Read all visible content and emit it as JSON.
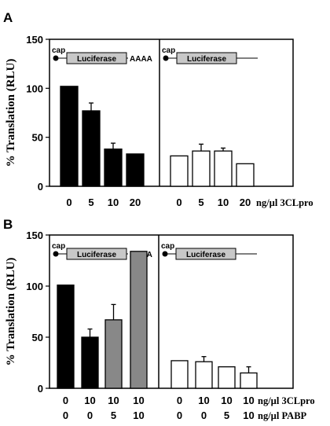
{
  "chart_data": [
    {
      "panel_label": "A",
      "type": "bar",
      "ylabel": "% Translation (RLU)",
      "ylim": [
        0,
        150
      ],
      "yticks": [
        "0",
        "50",
        "100",
        "150"
      ],
      "x_row_suffix": "ng/µl 3CLpro",
      "subpanels": [
        {
          "construct": {
            "cap": "cap",
            "gene": "Luciferase",
            "tail": "AAAA"
          },
          "categories": [
            "0",
            "5",
            "10",
            "20"
          ],
          "values": [
            102,
            77,
            38,
            33
          ],
          "errors": [
            null,
            8,
            6,
            null
          ],
          "fills": [
            "#000000",
            "#000000",
            "#000000",
            "#000000"
          ]
        },
        {
          "construct": {
            "cap": "cap",
            "gene": "Luciferase",
            "tail": ""
          },
          "categories": [
            "0",
            "5",
            "10",
            "20"
          ],
          "values": [
            31,
            36,
            36,
            23
          ],
          "errors": [
            null,
            7,
            3,
            null
          ],
          "fills": [
            "#ffffff",
            "#ffffff",
            "#ffffff",
            "#ffffff"
          ]
        }
      ]
    },
    {
      "panel_label": "B",
      "type": "bar",
      "ylabel": "% Translation (RLU)",
      "ylim": [
        0,
        150
      ],
      "yticks": [
        "0",
        "50",
        "100",
        "150"
      ],
      "x_row_suffixes": [
        "ng/µl 3CLpro",
        "ng/µl PABP"
      ],
      "subpanels": [
        {
          "construct": {
            "cap": "cap",
            "gene": "Luciferase",
            "tail": "AAAA"
          },
          "category_rows": [
            [
              "0",
              "10",
              "10",
              "10"
            ],
            [
              "0",
              "0",
              "5",
              "10"
            ]
          ],
          "values": [
            101,
            50,
            67,
            134
          ],
          "errors": [
            null,
            8,
            15,
            null
          ],
          "fills": [
            "#000000",
            "#000000",
            "#888888",
            "#888888"
          ]
        },
        {
          "construct": {
            "cap": "cap",
            "gene": "Luciferase",
            "tail": ""
          },
          "category_rows": [
            [
              "0",
              "10",
              "10",
              "10"
            ],
            [
              "0",
              "0",
              "5",
              "10"
            ]
          ],
          "values": [
            27,
            26,
            21,
            15
          ],
          "errors": [
            null,
            5,
            null,
            6
          ],
          "fills": [
            "#ffffff",
            "#ffffff",
            "#ffffff",
            "#ffffff"
          ]
        }
      ]
    }
  ]
}
